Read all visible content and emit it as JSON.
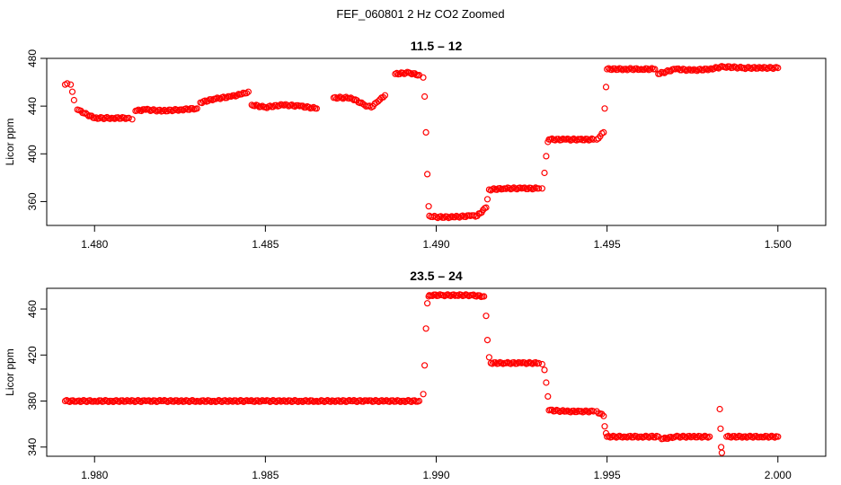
{
  "figure_title": "FEF_060801  2 Hz CO2 Zoomed",
  "colors": {
    "points": "#ff0000",
    "axes": "#000000",
    "background": "#ffffff"
  },
  "chart_data": [
    {
      "type": "scatter",
      "title": "11.5 – 12",
      "xlabel": "",
      "ylabel": "Licor ppm",
      "xlim": [
        1.4786,
        1.5014
      ],
      "ylim": [
        340,
        480
      ],
      "x_ticks": [
        "1.480",
        "1.485",
        "1.490",
        "1.495",
        "1.500"
      ],
      "y_ticks": [
        "360",
        "400",
        "440",
        "480"
      ],
      "marker": "open-circle",
      "series": [
        {
          "x": [
            1.47914,
            1.4792,
            1.4793,
            1.47935,
            1.4794,
            1.4795,
            1.4797,
            1.48,
            1.4805,
            1.481,
            1.4811,
            1.4812,
            1.4815,
            1.482,
            1.4825,
            1.483,
            1.4831,
            1.4835,
            1.484,
            1.4843,
            1.4845,
            1.4846,
            1.485,
            1.4855,
            1.486,
            1.4865,
            1.487,
            1.4875,
            1.4879,
            1.4881,
            1.4883,
            1.4885,
            1.4888,
            1.4892,
            1.4895,
            1.48962,
            1.48966,
            1.4897,
            1.48974,
            1.48978,
            1.4898,
            1.49,
            1.4905,
            1.491,
            1.4912,
            1.49146,
            1.4915,
            1.49155,
            1.492,
            1.4925,
            1.493,
            1.4931,
            1.49317,
            1.49322,
            1.49327,
            1.4933,
            1.4938,
            1.4942,
            1.4946,
            1.4947,
            1.4949,
            1.49493,
            1.49497,
            1.495,
            1.4955,
            1.496,
            1.4964,
            1.4965,
            1.497,
            1.4975,
            1.498,
            1.4984,
            1.499,
            1.4995,
            1.5
          ],
          "y": [
            458,
            459,
            458,
            452,
            445,
            437,
            434,
            430,
            430,
            430,
            429,
            436,
            437,
            436,
            437,
            438,
            443,
            446,
            448,
            450,
            452,
            441,
            439,
            441,
            440,
            438,
            447,
            447,
            441,
            439,
            444,
            449,
            467,
            468,
            466,
            464,
            448,
            418,
            383,
            356,
            348,
            347,
            347,
            348,
            348,
            355,
            362,
            370,
            371,
            371,
            371,
            371,
            384,
            398,
            410,
            412,
            412,
            412,
            412,
            412,
            418,
            438,
            456,
            471,
            471,
            471,
            471,
            467,
            471,
            470,
            471,
            473,
            472,
            472,
            472
          ]
        }
      ]
    },
    {
      "type": "scatter",
      "title": "23.5 – 24",
      "xlabel": "",
      "ylabel": "Licor ppm",
      "xlim": [
        1.9786,
        2.0014
      ],
      "ylim": [
        332,
        478
      ],
      "x_ticks": [
        "1.980",
        "1.985",
        "1.990",
        "1.995",
        "2.000"
      ],
      "y_ticks": [
        "340",
        "380",
        "420",
        "460"
      ],
      "marker": "open-circle",
      "series": [
        {
          "x": [
            1.97914,
            1.9795,
            1.98,
            1.9805,
            1.981,
            1.9815,
            1.982,
            1.9825,
            1.983,
            1.9835,
            1.984,
            1.9845,
            1.985,
            1.9855,
            1.986,
            1.9865,
            1.987,
            1.9875,
            1.988,
            1.9885,
            1.989,
            1.9895,
            1.98962,
            1.98966,
            1.9897,
            1.98974,
            1.98978,
            1.9898,
            1.9902,
            1.9906,
            1.991,
            1.9914,
            1.99146,
            1.9915,
            1.99155,
            1.9916,
            1.992,
            1.9925,
            1.993,
            1.9931,
            1.99317,
            1.99322,
            1.99327,
            1.9933,
            1.9938,
            1.9942,
            1.9946,
            1.9947,
            1.9949,
            1.99493,
            1.99497,
            1.995,
            1.9955,
            1.996,
            1.9965,
            1.9966,
            1.997,
            1.9975,
            1.998,
            1.9983,
            1.99832,
            1.99834,
            1.99836,
            1.9985,
            1.999,
            1.9995,
            2.0
          ],
          "y": [
            380,
            380,
            380,
            380,
            380,
            380,
            380,
            380,
            380,
            380,
            380,
            380,
            380,
            380,
            380,
            380,
            380,
            380,
            380,
            380,
            380,
            380,
            386,
            411,
            443,
            465,
            471,
            472,
            472,
            472,
            472,
            471,
            454,
            433,
            418,
            413,
            413,
            413,
            413,
            412,
            407,
            396,
            384,
            372,
            371,
            371,
            371,
            371,
            367,
            358,
            352,
            349,
            349,
            349,
            349,
            347,
            349,
            349,
            349,
            373,
            356,
            340,
            335,
            349,
            349,
            349,
            349
          ]
        }
      ]
    }
  ]
}
